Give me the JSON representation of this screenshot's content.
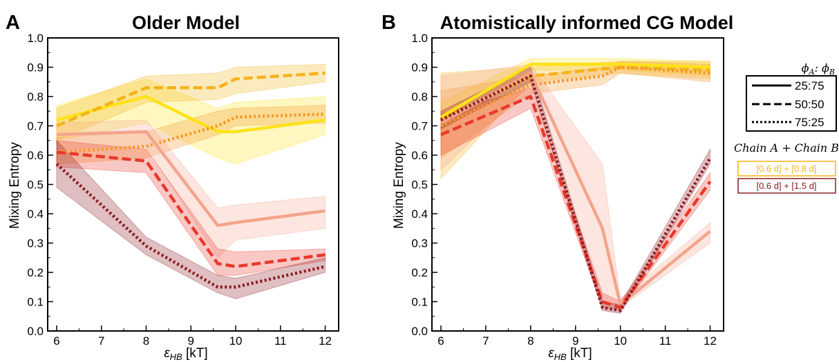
{
  "chart_data": [
    {
      "type": "line",
      "panel_letter": "A",
      "title": "Older Model",
      "xlabel": "ε_HB [kT]",
      "xlabel_main": "ε",
      "xlabel_sub": "HB",
      "xlabel_unit": " [kT]",
      "ylabel": "Mixing Entropy",
      "xlim": [
        5.8,
        12.3
      ],
      "ylim": [
        0.0,
        1.0
      ],
      "xticks": [
        "6",
        "7",
        "8",
        "9",
        "10",
        "11",
        "12"
      ],
      "yticks": [
        "0.0",
        "0.1",
        "0.2",
        "0.3",
        "0.4",
        "0.5",
        "0.6",
        "0.7",
        "0.8",
        "0.9",
        "1.0"
      ],
      "series": [
        {
          "color": "#fde21b",
          "style": "solid",
          "x": [
            6,
            8,
            9.6,
            10,
            12
          ],
          "y": [
            0.72,
            0.8,
            0.68,
            0.68,
            0.72
          ],
          "lo": [
            0.65,
            0.71,
            0.59,
            0.57,
            0.67
          ],
          "hi": [
            0.77,
            0.86,
            0.76,
            0.78,
            0.8
          ]
        },
        {
          "color": "#f5b21a",
          "style": "dash",
          "x": [
            6,
            8,
            9.6,
            10,
            12
          ],
          "y": [
            0.7,
            0.83,
            0.83,
            0.86,
            0.88
          ],
          "lo": [
            0.65,
            0.78,
            0.79,
            0.81,
            0.85
          ],
          "hi": [
            0.76,
            0.87,
            0.88,
            0.9,
            0.91
          ]
        },
        {
          "color": "#f5982a",
          "style": "dot",
          "x": [
            6,
            8,
            9.6,
            10,
            12
          ],
          "y": [
            0.61,
            0.63,
            0.7,
            0.73,
            0.74
          ],
          "lo": [
            0.57,
            0.59,
            0.67,
            0.7,
            0.71
          ],
          "hi": [
            0.66,
            0.68,
            0.75,
            0.76,
            0.77
          ]
        },
        {
          "color": "#f4a48c",
          "style": "solid",
          "x": [
            6,
            8,
            9.6,
            10,
            12
          ],
          "y": [
            0.67,
            0.68,
            0.36,
            0.37,
            0.41
          ],
          "lo": [
            0.62,
            0.63,
            0.25,
            0.31,
            0.35
          ],
          "hi": [
            0.71,
            0.72,
            0.42,
            0.43,
            0.46
          ]
        },
        {
          "color": "#e8392c",
          "style": "dash",
          "x": [
            6,
            8,
            9.6,
            10,
            12
          ],
          "y": [
            0.61,
            0.58,
            0.23,
            0.22,
            0.26
          ],
          "lo": [
            0.56,
            0.54,
            0.19,
            0.19,
            0.24
          ],
          "hi": [
            0.65,
            0.62,
            0.28,
            0.27,
            0.28
          ]
        },
        {
          "color": "#8c1a22",
          "style": "dot",
          "x": [
            6,
            8,
            9.6,
            10,
            12
          ],
          "y": [
            0.57,
            0.29,
            0.15,
            0.15,
            0.22
          ],
          "lo": [
            0.49,
            0.26,
            0.13,
            0.11,
            0.2
          ],
          "hi": [
            0.65,
            0.32,
            0.19,
            0.18,
            0.25
          ]
        }
      ]
    },
    {
      "type": "line",
      "panel_letter": "B",
      "title": "Atomistically informed CG Model",
      "xlabel": "ε_HB [kT]",
      "xlabel_main": "ε",
      "xlabel_sub": "HB",
      "xlabel_unit": " [kT]",
      "ylabel": "Mixing Entropy",
      "xlim": [
        5.8,
        12.3
      ],
      "ylim": [
        0.0,
        1.0
      ],
      "xticks": [
        "6",
        "7",
        "8",
        "9",
        "10",
        "11",
        "12"
      ],
      "yticks": [
        "0.0",
        "0.1",
        "0.2",
        "0.3",
        "0.4",
        "0.5",
        "0.6",
        "0.7",
        "0.8",
        "0.9",
        "1.0"
      ],
      "series": [
        {
          "color": "#fde21b",
          "style": "solid",
          "x": [
            6,
            8,
            10,
            12
          ],
          "y": [
            0.73,
            0.91,
            0.91,
            0.9
          ],
          "lo": [
            0.68,
            0.89,
            0.89,
            0.87
          ],
          "hi": [
            0.78,
            0.93,
            0.93,
            0.92
          ]
        },
        {
          "color": "#f5b21a",
          "style": "dash",
          "x": [
            6,
            8,
            10,
            12
          ],
          "y": [
            0.72,
            0.87,
            0.9,
            0.89
          ],
          "lo": [
            0.52,
            0.85,
            0.88,
            0.86
          ],
          "hi": [
            0.88,
            0.9,
            0.92,
            0.92
          ]
        },
        {
          "color": "#f5982a",
          "style": "dot",
          "x": [
            6,
            8,
            9.6,
            10,
            12
          ],
          "y": [
            0.7,
            0.84,
            0.87,
            0.9,
            0.88
          ],
          "lo": [
            0.59,
            0.81,
            0.84,
            0.88,
            0.85
          ],
          "hi": [
            0.82,
            0.87,
            0.9,
            0.92,
            0.91
          ]
        },
        {
          "color": "#f4a48c",
          "style": "solid",
          "x": [
            6,
            8,
            9.6,
            10,
            12
          ],
          "y": [
            0.71,
            0.88,
            0.35,
            0.09,
            0.34
          ],
          "lo": [
            0.55,
            0.84,
            0.1,
            0.08,
            0.3
          ],
          "hi": [
            0.87,
            0.91,
            0.57,
            0.11,
            0.37
          ]
        },
        {
          "color": "#e8392c",
          "style": "dash",
          "x": [
            6,
            8,
            9.6,
            10,
            12
          ],
          "y": [
            0.67,
            0.8,
            0.1,
            0.08,
            0.51
          ],
          "lo": [
            0.6,
            0.76,
            0.08,
            0.07,
            0.48
          ],
          "hi": [
            0.74,
            0.83,
            0.13,
            0.1,
            0.54
          ]
        },
        {
          "color": "#8c1a22",
          "style": "dot",
          "x": [
            6,
            8,
            9.6,
            10,
            12
          ],
          "y": [
            0.72,
            0.87,
            0.08,
            0.07,
            0.59
          ],
          "lo": [
            0.69,
            0.85,
            0.07,
            0.06,
            0.57
          ],
          "hi": [
            0.75,
            0.9,
            0.1,
            0.09,
            0.62
          ]
        }
      ]
    }
  ],
  "legend": {
    "header": "ϕA : ϕB",
    "header_phi": "ϕ",
    "header_a": "A",
    "header_colon": ": ",
    "header_b": "B",
    "entries": [
      {
        "label": "25:75",
        "style": "solid"
      },
      {
        "label": "50:50",
        "style": "dash"
      },
      {
        "label": "75:25",
        "style": "dot"
      }
    ],
    "chain_header": "Chain A + Chain B",
    "chain_entries": [
      {
        "label": "[0.6 d] + [0.8 d]",
        "color": "#f5b21a"
      },
      {
        "label": "[0.6 d] + [1.5 d]",
        "color": "#8c1a22"
      }
    ]
  }
}
